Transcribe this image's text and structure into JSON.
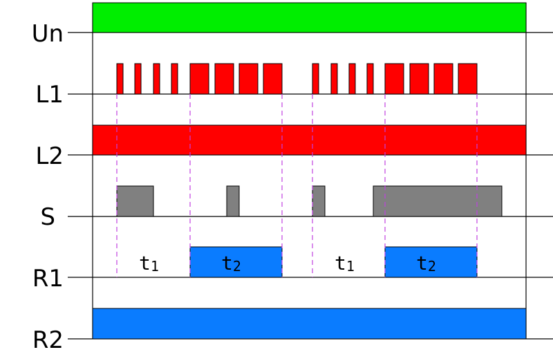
{
  "signals": [
    {
      "label": "Un"
    },
    {
      "label": "L1"
    },
    {
      "label": "L2"
    },
    {
      "label": "S"
    },
    {
      "label": "R1"
    },
    {
      "label": "R2"
    }
  ],
  "intervals": [
    {
      "base": "t",
      "sub": "1"
    },
    {
      "base": "t",
      "sub": "2"
    },
    {
      "base": "t",
      "sub": "1"
    },
    {
      "base": "t",
      "sub": "2"
    }
  ]
}
